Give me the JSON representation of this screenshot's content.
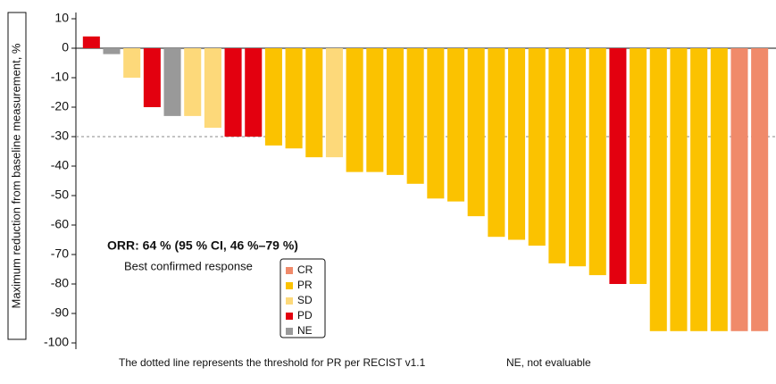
{
  "chart_data": {
    "type": "waterfall",
    "ylabel": "Maximum reduction from baseline measurement, %",
    "values": [
      4,
      -2,
      -10,
      -20,
      -23,
      -23,
      -27,
      -30,
      -30,
      -33,
      -34,
      -37,
      -37,
      -42,
      -42,
      -43,
      -46,
      -51,
      -52,
      -57,
      -64,
      -65,
      -67,
      -73,
      -74,
      -77,
      -80,
      -80,
      -96,
      -96,
      -96,
      -96,
      -96,
      -96
    ],
    "responses": [
      "PD",
      "NE",
      "SD",
      "PD",
      "NE",
      "SD",
      "SD",
      "PD",
      "PD",
      "PR",
      "PR",
      "PR",
      "SD",
      "PR",
      "PR",
      "PR",
      "PR",
      "PR",
      "PR",
      "PR",
      "PR",
      "PR",
      "PR",
      "PR",
      "PR",
      "PR",
      "PD",
      "PR",
      "PR",
      "PR",
      "PR",
      "PR",
      "CR",
      "CR"
    ],
    "legend_title": "Best confirmed response",
    "legend": [
      {
        "name": "CR",
        "color": "#f08a6a"
      },
      {
        "name": "PR",
        "color": "#fbc200"
      },
      {
        "name": "SD",
        "color": "#fdd97a"
      },
      {
        "name": "PD",
        "color": "#e3000f"
      },
      {
        "name": "NE",
        "color": "#999999"
      }
    ],
    "threshold": -30,
    "annotation": "ORR: 64 % (95 % CI, 46 %–79 %)",
    "footnotes": [
      "The dotted line represents the threshold for PR per RECIST v1.1",
      "NE, not evaluable"
    ],
    "ylim": [
      -100,
      10
    ],
    "yticks": [
      -100,
      -90,
      -80,
      -70,
      -60,
      -50,
      -40,
      -30,
      -20,
      -10,
      0,
      10
    ]
  }
}
